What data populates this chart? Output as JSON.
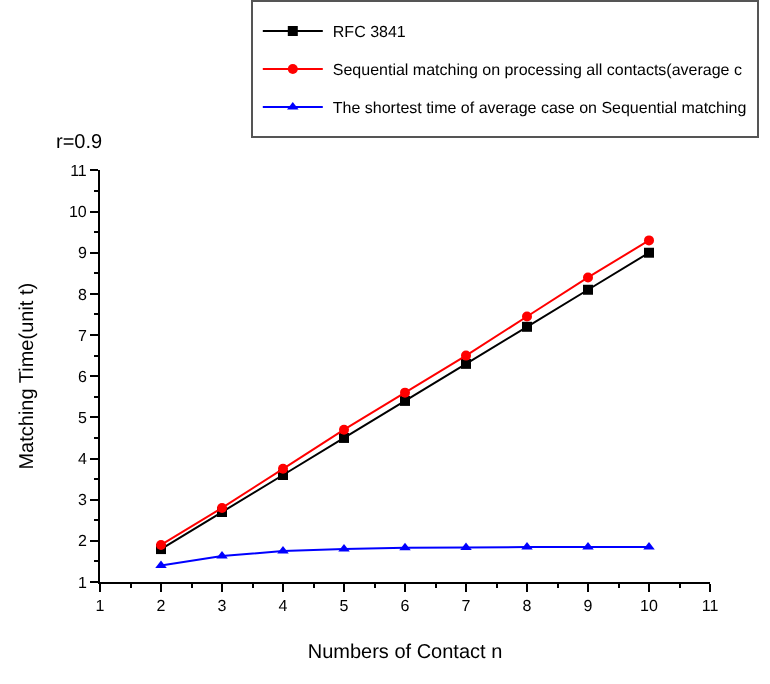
{
  "chart_data": {
    "type": "line",
    "xlabel": "Numbers of Contact n",
    "ylabel": "Matching Time(unit t)",
    "annotations": [
      "r=0.9"
    ],
    "x": [
      2,
      3,
      4,
      5,
      6,
      7,
      8,
      9,
      10
    ],
    "series": [
      {
        "name": "RFC 3841",
        "color": "#000000",
        "marker": "square",
        "values": [
          1.8,
          2.7,
          3.6,
          4.5,
          5.4,
          6.3,
          7.2,
          8.1,
          9.0
        ]
      },
      {
        "name": "Sequential matching on processing all contacts(average c",
        "color": "#ff0000",
        "marker": "circle",
        "values": [
          1.9,
          2.8,
          3.75,
          4.7,
          5.6,
          6.5,
          7.45,
          8.4,
          9.3
        ]
      },
      {
        "name": "The shortest time of average case on Sequential matching",
        "color": "#0000ff",
        "marker": "triangle",
        "values": [
          1.4,
          1.63,
          1.75,
          1.8,
          1.83,
          1.84,
          1.85,
          1.85,
          1.85
        ]
      }
    ],
    "xlim": [
      1,
      11
    ],
    "xticks": [
      1,
      2,
      3,
      4,
      5,
      6,
      7,
      8,
      9,
      10,
      11
    ],
    "ylim": [
      1,
      11
    ],
    "yticks": [
      1,
      2,
      3,
      4,
      5,
      6,
      7,
      8,
      9,
      10,
      11
    ],
    "legend": "top right",
    "line_style": "solid"
  }
}
